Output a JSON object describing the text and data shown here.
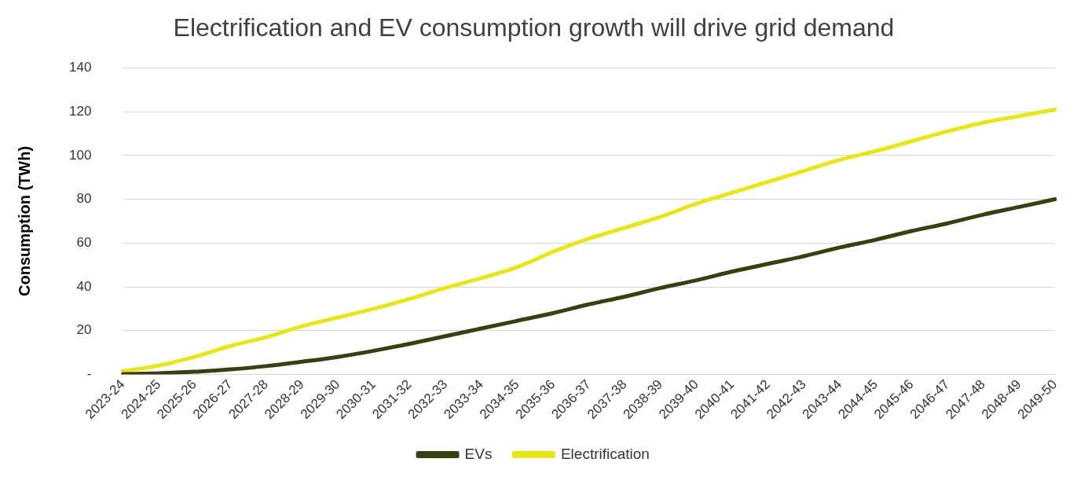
{
  "chart_data": {
    "type": "line",
    "title": "Electrification and EV consumption growth will drive grid demand",
    "ylabel": "Consumption (TWh)",
    "categories": [
      "2023-24",
      "2024-25",
      "2025-26",
      "2026-27",
      "2027-28",
      "2028-29",
      "2029-30",
      "2030-31",
      "2031-32",
      "2032-33",
      "2033-34",
      "2034-35",
      "2035-36",
      "2036-37",
      "2037-38",
      "2038-39",
      "2039-40",
      "2040-41",
      "2041-42",
      "2042-43",
      "2043-44",
      "2044-45",
      "2045-46",
      "2046-47",
      "2047-48",
      "2048-49",
      "2049-50"
    ],
    "series": [
      {
        "name": "EVs",
        "color": "#3a3f12",
        "values": [
          0.2,
          0.5,
          1.2,
          2.3,
          3.8,
          5.8,
          8,
          10.8,
          14,
          17.5,
          21,
          24.5,
          28,
          32,
          35.5,
          39.5,
          43,
          47,
          50.5,
          54,
          58,
          61.5,
          65.5,
          69,
          73,
          76.5,
          80
        ]
      },
      {
        "name": "Electrification",
        "color": "#e6e619",
        "values": [
          1.5,
          4,
          8,
          13,
          17,
          22,
          26,
          30,
          34.5,
          39.5,
          44,
          49,
          56,
          62,
          67,
          72,
          78,
          83,
          88,
          93,
          98,
          102,
          106.5,
          111,
          115,
          118,
          121
        ]
      }
    ],
    "ylim": [
      0,
      140
    ],
    "yticks": [
      {
        "value": 0,
        "label": "-"
      },
      20,
      40,
      60,
      80,
      100,
      120,
      140
    ],
    "grid": "y",
    "legend": "bottom",
    "marker": "none",
    "line_style": "solid"
  }
}
